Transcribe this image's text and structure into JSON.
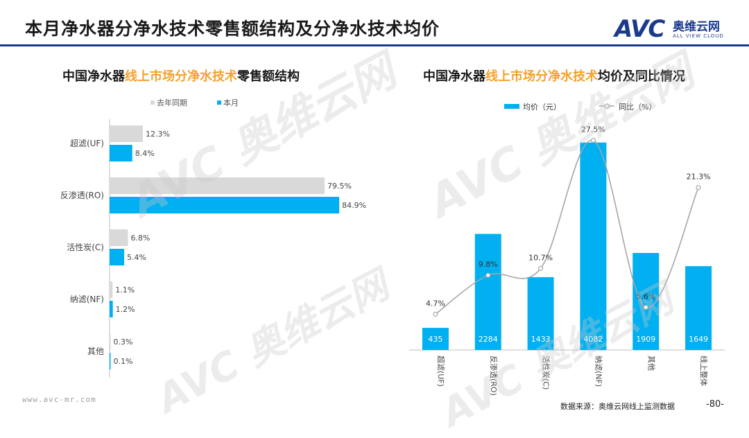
{
  "page": {
    "title": "本月净水器分净水技术零售额结构及分净水技术均价",
    "logo_mark": "AVC",
    "logo_cn": "奥维云网",
    "logo_en": "ALL VIEW CLOUD",
    "watermark": "AVC 奥维云网",
    "footer_url": "www.avc-mr.com",
    "footer_source": "数据来源：奥维云网线上监测数据",
    "page_number": "-80-"
  },
  "chart_data": [
    {
      "type": "bar",
      "orientation": "horizontal",
      "title_parts": [
        "中国净水器",
        "线上市场分净水技术",
        "零售额结构"
      ],
      "categories": [
        "超滤(UF)",
        "反渗透(RO)",
        "活性炭(C)",
        "纳滤(NF)",
        "其他"
      ],
      "series": [
        {
          "name": "去年同期",
          "values": [
            12.3,
            79.5,
            6.8,
            1.1,
            0.3
          ],
          "labels": [
            "12.3%",
            "79.5%",
            "6.8%",
            "1.1%",
            "0.3%"
          ],
          "color": "#d9d9d9"
        },
        {
          "name": "本月",
          "values": [
            8.4,
            84.9,
            5.4,
            1.2,
            0.1
          ],
          "labels": [
            "8.4%",
            "84.9%",
            "5.4%",
            "1.2%",
            "0.1%"
          ],
          "color": "#00b0f0"
        }
      ],
      "xlim": [
        0,
        100
      ],
      "legend": "top-left",
      "grid": false
    },
    {
      "type": "bar+line",
      "title_parts": [
        "中国净水器",
        "线上市场分净水技术",
        "均价及同比情况"
      ],
      "categories": [
        "超滤(UF)",
        "反渗透(RO)",
        "活性炭(C)",
        "纳滤(NF)",
        "其他",
        "线上整体"
      ],
      "bar_series": {
        "name": "均价（元）",
        "values": [
          435,
          2284,
          1433,
          4082,
          1909,
          1649
        ],
        "color": "#00b0f0"
      },
      "line_series": {
        "name": "同比（%）",
        "values": [
          4.7,
          9.8,
          10.7,
          27.5,
          5.6,
          21.3
        ],
        "labels": [
          "4.7%",
          "9.8%",
          "10.7%",
          "27.5%",
          "5.6%",
          "21.3%"
        ],
        "color": "#a6a6a6"
      },
      "bar_ylim": [
        0,
        4500
      ],
      "line_ylim": [
        0,
        30
      ],
      "legend": "top-center",
      "grid": false
    }
  ]
}
